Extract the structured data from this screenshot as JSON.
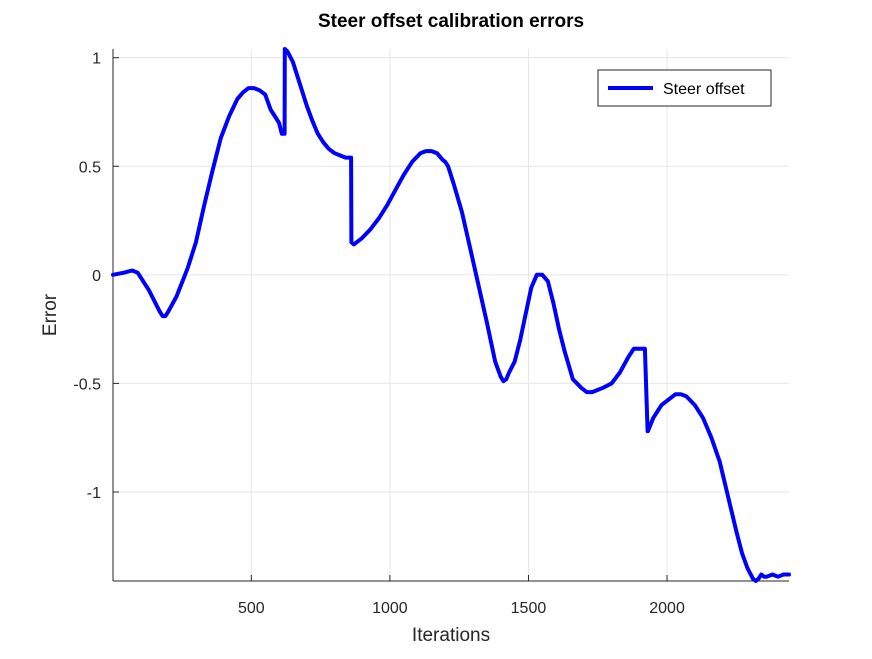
{
  "chart_data": {
    "type": "line",
    "title": "Steer offset calibration errors",
    "xlabel": "Iterations",
    "ylabel": "Error",
    "xlim": [
      1,
      2440
    ],
    "ylim": [
      -1.41,
      1.04
    ],
    "xticks": [
      500,
      1000,
      1500,
      2000
    ],
    "yticks": [
      1,
      0.5,
      0,
      -0.5,
      -1
    ],
    "xtick_labels": [
      "500",
      "1000",
      "1500",
      "2000"
    ],
    "ytick_labels": [
      "1",
      "0.5",
      "0",
      "-0.5",
      "-1"
    ],
    "grid": true,
    "legend": {
      "position": "top-right",
      "entries": [
        "Steer offset"
      ]
    },
    "series": [
      {
        "name": "Steer offset",
        "color": "#0000ff",
        "x": [
          1,
          40,
          70,
          90,
          110,
          130,
          150,
          170,
          180,
          190,
          200,
          230,
          270,
          300,
          330,
          360,
          390,
          420,
          450,
          470,
          490,
          510,
          530,
          550,
          570,
          580,
          600,
          610,
          620,
          621,
          630,
          650,
          680,
          700,
          720,
          740,
          760,
          780,
          800,
          820,
          840,
          860,
          861,
          870,
          900,
          930,
          960,
          990,
          1020,
          1050,
          1080,
          1110,
          1130,
          1150,
          1170,
          1190,
          1200,
          1210,
          1230,
          1260,
          1290,
          1320,
          1350,
          1380,
          1400,
          1410,
          1420,
          1430,
          1450,
          1470,
          1490,
          1510,
          1530,
          1550,
          1570,
          1580,
          1590,
          1610,
          1630,
          1660,
          1690,
          1710,
          1730,
          1750,
          1770,
          1800,
          1830,
          1860,
          1880,
          1900,
          1920,
          1930,
          1931,
          1950,
          1980,
          2000,
          2030,
          2050,
          2070,
          2100,
          2130,
          2160,
          2190,
          2220,
          2250,
          2270,
          2290,
          2310,
          2320,
          2330,
          2340,
          2350,
          2360,
          2380,
          2400,
          2420,
          2440
        ],
        "y": [
          0.0,
          0.01,
          0.02,
          0.01,
          -0.03,
          -0.07,
          -0.12,
          -0.17,
          -0.19,
          -0.19,
          -0.17,
          -0.1,
          0.03,
          0.15,
          0.32,
          0.48,
          0.63,
          0.73,
          0.81,
          0.84,
          0.86,
          0.86,
          0.85,
          0.83,
          0.76,
          0.74,
          0.7,
          0.65,
          0.65,
          1.04,
          1.03,
          0.98,
          0.86,
          0.78,
          0.71,
          0.65,
          0.61,
          0.58,
          0.56,
          0.55,
          0.54,
          0.54,
          0.15,
          0.14,
          0.17,
          0.21,
          0.26,
          0.32,
          0.39,
          0.46,
          0.52,
          0.56,
          0.57,
          0.57,
          0.56,
          0.53,
          0.52,
          0.5,
          0.42,
          0.29,
          0.12,
          -0.05,
          -0.22,
          -0.4,
          -0.47,
          -0.49,
          -0.48,
          -0.45,
          -0.4,
          -0.3,
          -0.18,
          -0.06,
          0.0,
          0.0,
          -0.03,
          -0.08,
          -0.13,
          -0.25,
          -0.35,
          -0.48,
          -0.52,
          -0.54,
          -0.54,
          -0.53,
          -0.52,
          -0.5,
          -0.45,
          -0.38,
          -0.34,
          -0.34,
          -0.34,
          -0.72,
          -0.72,
          -0.66,
          -0.6,
          -0.58,
          -0.55,
          -0.55,
          -0.56,
          -0.6,
          -0.66,
          -0.75,
          -0.86,
          -1.02,
          -1.18,
          -1.28,
          -1.35,
          -1.4,
          -1.41,
          -1.4,
          -1.38,
          -1.39,
          -1.39,
          -1.38,
          -1.39,
          -1.38,
          -1.38
        ]
      }
    ]
  }
}
